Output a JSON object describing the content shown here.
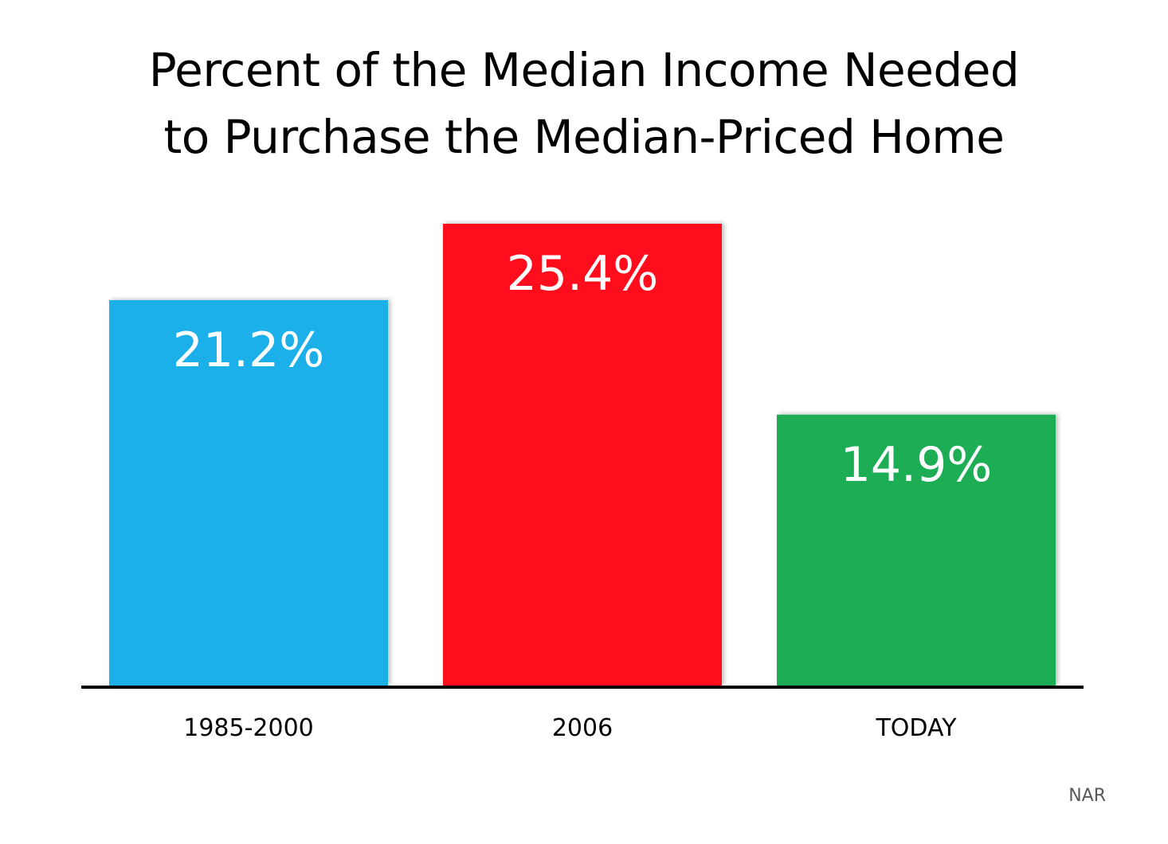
{
  "chart_data": {
    "type": "bar",
    "title": "Percent of the Median Income Needed to Purchase the Median-Priced Home",
    "title_lines": [
      "Percent of the Median Income Needed",
      "to Purchase the Median-Priced Home"
    ],
    "categories": [
      "1985-2000",
      "2006",
      "TODAY"
    ],
    "values": [
      21.2,
      25.4,
      14.9
    ],
    "data_labels": [
      "21.2%",
      "25.4%",
      "14.9%"
    ],
    "colors": [
      "#1FB0EA",
      "#FF0E1F",
      "#1CAD54"
    ],
    "xlabel": "",
    "ylabel": "",
    "ylim": [
      0,
      25.4
    ],
    "grid": false,
    "legend": "none"
  },
  "source": "NAR"
}
